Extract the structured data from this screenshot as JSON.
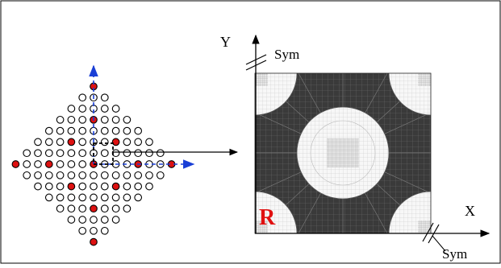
{
  "labels": {
    "y_axis": "Y",
    "x_axis": "X",
    "sym_top": "Sym",
    "sym_bottom": "Sym",
    "region": "R"
  },
  "colors": {
    "red_circle": "#dd1111",
    "hollow_circle": "#ffffff",
    "blue_axis": "#1a3fd6",
    "mesh_dark": "#3a3a3a",
    "mesh_light": "#f4f4f4",
    "region_label": "#e01010"
  },
  "lattice": {
    "grid_half_range": 7,
    "red_positions": [
      [
        0,
        -7
      ],
      [
        0,
        -4
      ],
      [
        -2,
        -2
      ],
      [
        2,
        -2
      ],
      [
        -4,
        0
      ],
      [
        0,
        0
      ],
      [
        4,
        0
      ],
      [
        -7,
        0
      ],
      [
        7,
        0
      ],
      [
        -2,
        2
      ],
      [
        2,
        2
      ],
      [
        0,
        4
      ],
      [
        0,
        7
      ]
    ]
  },
  "mesh": {
    "center_circle": true,
    "corner_quarter_circles": 4
  }
}
